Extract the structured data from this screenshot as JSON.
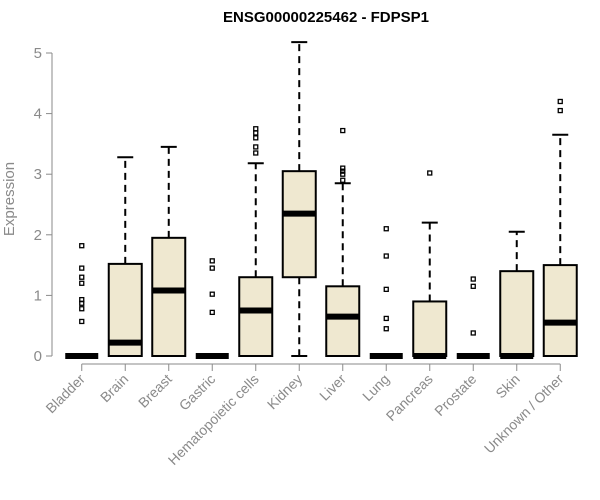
{
  "chart_data": {
    "type": "box",
    "title": "ENSG00000225462 - FDPSP1",
    "ylabel": "Expression",
    "xlabel": "",
    "ylim": [
      0,
      5.1
    ],
    "yticks": [
      0,
      1,
      2,
      3,
      4,
      5
    ],
    "box_color": "#efe8d0",
    "categories": [
      "Bladder",
      "Brain",
      "Breast",
      "Gastric",
      "Hematopoietic cells",
      "Kidney",
      "Liver",
      "Lung",
      "Pancreas",
      "Prostate",
      "Skin",
      "Unknown / Other"
    ],
    "boxes": [
      {
        "min": 0,
        "q1": 0,
        "median": 0,
        "q3": 0,
        "max": 0,
        "outliers": [
          0.57,
          0.78,
          0.87,
          0.93,
          1.2,
          1.3,
          1.45,
          1.82
        ]
      },
      {
        "min": 0,
        "q1": 0,
        "median": 0.22,
        "q3": 1.52,
        "max": 3.28,
        "outliers": []
      },
      {
        "min": 0,
        "q1": 0,
        "median": 1.08,
        "q3": 1.95,
        "max": 3.45,
        "outliers": []
      },
      {
        "min": 0,
        "q1": 0,
        "median": 0,
        "q3": 0,
        "max": 0,
        "outliers": [
          0.72,
          1.02,
          1.45,
          1.57
        ]
      },
      {
        "min": 0,
        "q1": 0,
        "median": 0.75,
        "q3": 1.3,
        "max": 3.18,
        "outliers": [
          3.35,
          3.45,
          3.6,
          3.68,
          3.75
        ]
      },
      {
        "min": 0,
        "q1": 1.3,
        "median": 2.35,
        "q3": 3.05,
        "max": 5.18,
        "outliers": []
      },
      {
        "min": 0,
        "q1": 0,
        "median": 0.65,
        "q3": 1.15,
        "max": 2.85,
        "outliers": [
          2.9,
          3.0,
          3.05,
          3.1,
          3.72
        ]
      },
      {
        "min": 0,
        "q1": 0,
        "median": 0,
        "q3": 0,
        "max": 0,
        "outliers": [
          0.45,
          0.62,
          1.1,
          1.65,
          2.1
        ]
      },
      {
        "min": 0,
        "q1": 0,
        "median": 0,
        "q3": 0.9,
        "max": 2.2,
        "outliers": [
          3.02
        ]
      },
      {
        "min": 0,
        "q1": 0,
        "median": 0,
        "q3": 0,
        "max": 0,
        "outliers": [
          0.38,
          1.15,
          1.27
        ]
      },
      {
        "min": 0,
        "q1": 0,
        "median": 0,
        "q3": 1.4,
        "max": 2.05,
        "outliers": []
      },
      {
        "min": 0,
        "q1": 0,
        "median": 0.55,
        "q3": 1.5,
        "max": 3.65,
        "outliers": [
          4.05,
          4.2
        ]
      }
    ]
  }
}
